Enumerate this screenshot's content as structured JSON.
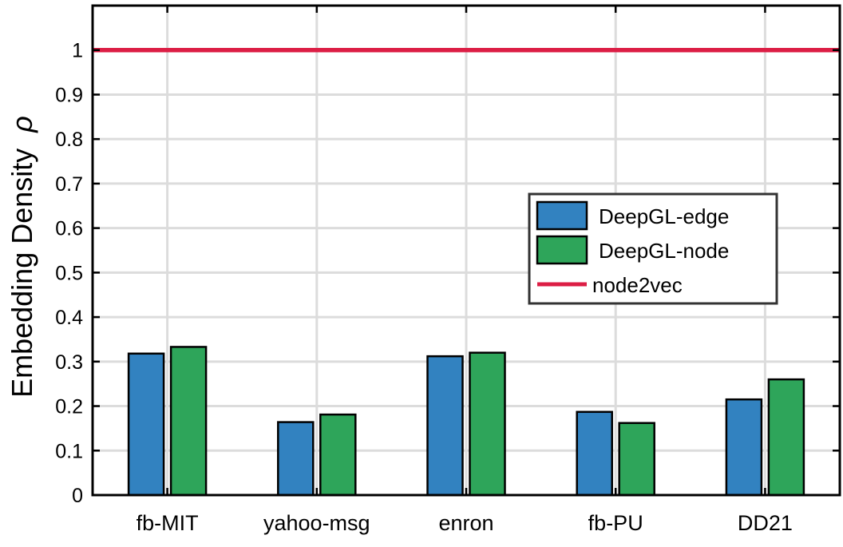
{
  "chart_data": {
    "type": "bar",
    "title": "",
    "xlabel": "",
    "ylabel": "Embedding Density",
    "ylabel_symbol": "ρ",
    "ylim": [
      0,
      1.1
    ],
    "yticks": [
      "0",
      "0.1",
      "0.2",
      "0.3",
      "0.4",
      "0.5",
      "0.6",
      "0.7",
      "0.8",
      "0.9",
      "1"
    ],
    "categories": [
      "fb-MIT",
      "yahoo-msg",
      "enron",
      "fb-PU",
      "DD21"
    ],
    "series": [
      {
        "name": "DeepGL-edge",
        "color": "#3282c0",
        "values": [
          0.318,
          0.164,
          0.312,
          0.187,
          0.215
        ]
      },
      {
        "name": "DeepGL-node",
        "color": "#2ea55a",
        "values": [
          0.333,
          0.181,
          0.32,
          0.162,
          0.26
        ]
      }
    ],
    "reference_line": {
      "name": "node2vec",
      "color": "#dc1e45",
      "value": 1.0
    },
    "grid": true,
    "legend_position": "center-right"
  }
}
